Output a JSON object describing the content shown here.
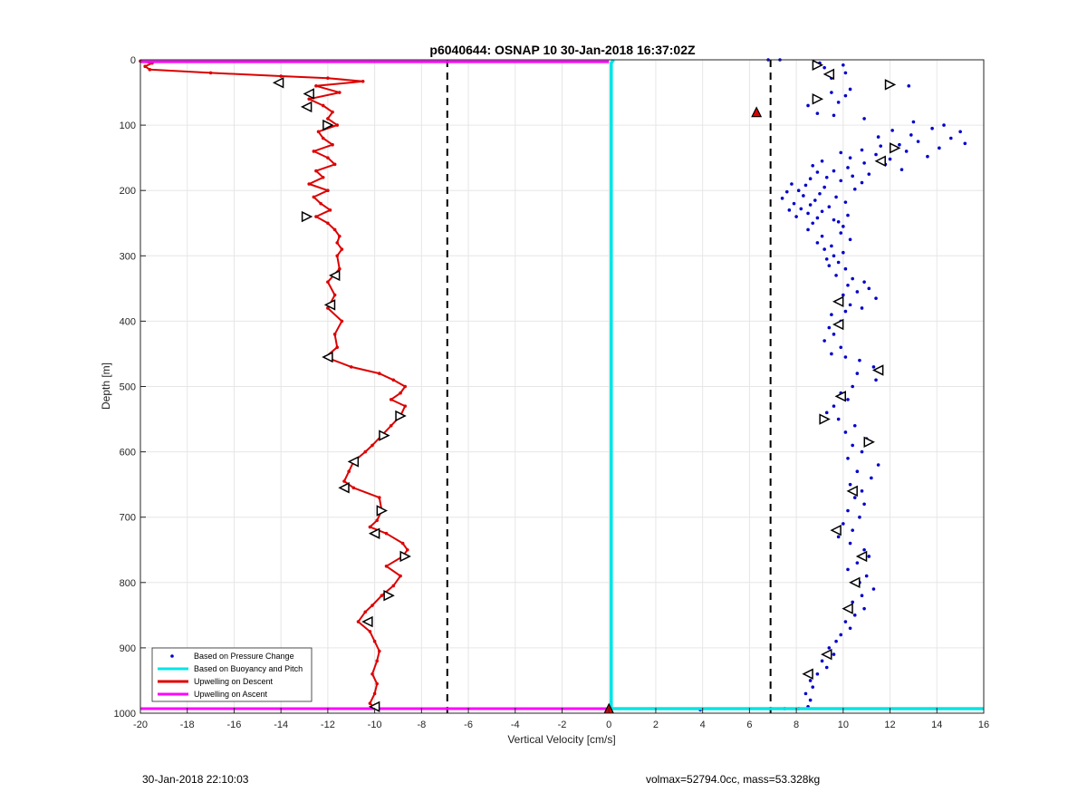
{
  "chart_data": {
    "type": "scatter",
    "title": "p6040644: OSNAP 10 30-Jan-2018 16:37:02Z",
    "xlabel": "Vertical Velocity [cm/s]",
    "ylabel": "Depth [m]",
    "xlim": [
      -20,
      16
    ],
    "ylim": [
      0,
      1000
    ],
    "y_reversed": true,
    "grid": true,
    "x_ticks": [
      "-20",
      "-18",
      "-16",
      "-14",
      "-12",
      "-10",
      "-8",
      "-6",
      "-4",
      "-2",
      "0",
      "2",
      "4",
      "6",
      "8",
      "10",
      "12",
      "14",
      "16"
    ],
    "y_ticks": [
      "0",
      "100",
      "200",
      "300",
      "400",
      "500",
      "600",
      "700",
      "800",
      "900",
      "1000"
    ],
    "x_tick_values": [
      -20,
      -18,
      -16,
      -14,
      -12,
      -10,
      -8,
      -6,
      -4,
      -2,
      0,
      2,
      4,
      6,
      8,
      10,
      12,
      14,
      16
    ],
    "y_tick_values": [
      0,
      100,
      200,
      300,
      400,
      500,
      600,
      700,
      800,
      900,
      1000
    ],
    "legend_position": "bottom-left",
    "legend": [
      {
        "label": "Based on Pressure Change",
        "color": "#0000cc",
        "style": "dot"
      },
      {
        "label": "Based on Buoyancy and Pitch",
        "color": "#00e5e5",
        "style": "line"
      },
      {
        "label": "Upwelling on Descent",
        "color": "#dd0000",
        "style": "line"
      },
      {
        "label": "Upwelling on Ascent",
        "color": "#ff00ff",
        "style": "line"
      }
    ],
    "vlines_dashed": [
      -6.9,
      6.9
    ],
    "series": [
      {
        "name": "Upwelling on Descent",
        "color": "#dd0000",
        "depth": [
          2,
          5,
          10,
          15,
          20,
          25,
          28,
          33,
          40,
          50,
          60,
          70,
          80,
          90,
          100,
          110,
          120,
          130,
          140,
          150,
          160,
          170,
          180,
          190,
          200,
          210,
          220,
          230,
          240,
          250,
          260,
          270,
          280,
          290,
          300,
          320,
          340,
          360,
          380,
          400,
          420,
          440,
          455,
          470,
          480,
          490,
          500,
          510,
          520,
          530,
          545,
          560,
          575,
          590,
          600,
          615,
          630,
          645,
          655,
          670,
          690,
          705,
          715,
          725,
          740,
          750,
          760,
          775,
          790,
          805,
          820,
          835,
          845,
          860,
          875,
          890,
          905,
          920,
          940,
          955,
          970,
          985,
          992
        ],
        "velocity": [
          -20,
          -19.5,
          -19.8,
          -19.6,
          -17,
          -14,
          -12,
          -10.5,
          -12.5,
          -11.5,
          -12.8,
          -12.2,
          -11.8,
          -12,
          -11.6,
          -12.4,
          -12.2,
          -11.8,
          -12.6,
          -12.0,
          -11.7,
          -12.5,
          -12.2,
          -12.8,
          -12.0,
          -12.6,
          -12.3,
          -11.9,
          -12.5,
          -12.0,
          -11.7,
          -11.5,
          -11.6,
          -11.4,
          -11.6,
          -11.5,
          -12.0,
          -11.7,
          -12.0,
          -11.4,
          -11.7,
          -11.6,
          -12.1,
          -11.0,
          -9.8,
          -9.2,
          -8.7,
          -8.9,
          -9.3,
          -8.7,
          -8.9,
          -9.3,
          -9.7,
          -10.1,
          -10.4,
          -10.9,
          -11.1,
          -11.3,
          -10.9,
          -9.8,
          -9.7,
          -9.9,
          -10.2,
          -9.5,
          -8.8,
          -8.6,
          -8.8,
          -9.5,
          -8.9,
          -9.2,
          -9.7,
          -10.1,
          -10.4,
          -10.7,
          -10.2,
          -10.0,
          -9.8,
          -9.9,
          -10.1,
          -9.9,
          -10.0,
          -10.2,
          -10.0
        ]
      },
      {
        "name": "Based on Pressure Change",
        "color": "#0000cc",
        "depth": [
          0,
          0,
          5,
          8,
          12,
          20,
          28,
          35,
          40,
          45,
          50,
          55,
          60,
          65,
          70,
          78,
          82,
          85,
          90,
          95,
          100,
          105,
          108,
          110,
          115,
          118,
          120,
          125,
          128,
          130,
          132,
          135,
          138,
          140,
          142,
          145,
          148,
          150,
          152,
          155,
          158,
          160,
          162,
          165,
          168,
          170,
          172,
          175,
          178,
          180,
          182,
          185,
          188,
          190,
          192,
          195,
          198,
          200,
          202,
          205,
          208,
          210,
          212,
          215,
          218,
          220,
          222,
          225,
          228,
          230,
          232,
          235,
          238,
          240,
          242,
          245,
          248,
          250,
          255,
          260,
          265,
          270,
          275,
          280,
          285,
          290,
          295,
          300,
          305,
          310,
          315,
          320,
          330,
          335,
          340,
          345,
          350,
          355,
          360,
          365,
          370,
          375,
          380,
          385,
          390,
          400,
          410,
          420,
          430,
          440,
          450,
          455,
          460,
          470,
          480,
          490,
          500,
          510,
          520,
          530,
          540,
          550,
          560,
          570,
          580,
          590,
          600,
          610,
          620,
          630,
          640,
          650,
          660,
          670,
          680,
          690,
          700,
          710,
          720,
          730,
          740,
          750,
          760,
          770,
          780,
          790,
          800,
          810,
          820,
          830,
          840,
          850,
          860,
          870,
          880,
          890,
          900,
          910,
          920,
          930,
          940,
          950,
          960,
          970,
          980,
          990,
          993,
          993,
          995
        ],
        "velocity": [
          6.8,
          7.3,
          9.0,
          10.0,
          9.2,
          10.1,
          9.5,
          11.9,
          12.8,
          10.3,
          9.5,
          10.1,
          8.9,
          9.8,
          8.5,
          6.3,
          8.9,
          9.6,
          10.9,
          13.0,
          14.3,
          13.8,
          12.1,
          15.0,
          12.9,
          11.5,
          14.6,
          13.2,
          15.2,
          12.4,
          11.6,
          14.1,
          10.8,
          12.7,
          9.9,
          11.4,
          13.6,
          10.3,
          12.0,
          9.1,
          10.9,
          11.8,
          8.7,
          10.2,
          12.5,
          9.6,
          8.9,
          11.1,
          10.4,
          9.3,
          8.6,
          9.9,
          10.8,
          7.8,
          8.4,
          9.2,
          10.5,
          8.1,
          7.6,
          9.0,
          8.3,
          9.7,
          7.4,
          8.8,
          10.1,
          7.9,
          8.6,
          9.4,
          8.2,
          7.7,
          9.1,
          8.5,
          10.2,
          8.0,
          8.9,
          9.6,
          9.8,
          8.7,
          10.0,
          8.5,
          9.9,
          9.1,
          10.3,
          8.9,
          9.5,
          9.2,
          10.0,
          9.6,
          9.3,
          9.8,
          9.4,
          10.1,
          9.7,
          10.4,
          10.9,
          10.2,
          11.1,
          10.6,
          10.0,
          11.4,
          9.7,
          10.3,
          10.8,
          10.1,
          9.5,
          9.9,
          9.4,
          9.6,
          9.2,
          9.9,
          9.5,
          10.1,
          10.7,
          11.3,
          10.6,
          11.4,
          10.4,
          9.9,
          10.2,
          9.6,
          9.3,
          9.8,
          10.5,
          10.1,
          11.0,
          10.4,
          10.8,
          10.2,
          11.5,
          10.6,
          11.2,
          10.3,
          10.8,
          10.5,
          10.9,
          10.2,
          10.7,
          10.0,
          10.4,
          9.8,
          10.3,
          10.9,
          11.1,
          10.6,
          10.2,
          11.0,
          10.7,
          11.3,
          10.8,
          10.4,
          10.9,
          10.5,
          10.1,
          10.3,
          9.9,
          9.7,
          9.4,
          9.6,
          9.1,
          9.3,
          8.9,
          8.6,
          8.7,
          8.4,
          8.6,
          8.5,
          8.1,
          7.5,
          3.9,
          1.2,
          -5.0
        ]
      },
      {
        "name": "Based on Buoyancy and Pitch",
        "color": "#00e5e5",
        "depth": [
          0,
          5,
          10,
          200,
          400,
          600,
          800,
          985,
          993,
          993
        ],
        "velocity": [
          0.2,
          0.1,
          0.1,
          0.1,
          0.1,
          0.1,
          0.1,
          0.1,
          0.1,
          16
        ]
      },
      {
        "name": "Upwelling on Ascent",
        "color": "#ff00ff",
        "depth": [
          3,
          3,
          993,
          993
        ],
        "velocity": [
          -20,
          0,
          -20,
          0
        ]
      }
    ],
    "markers_descent": {
      "depth": [
        35,
        52,
        72,
        100,
        240,
        330,
        375,
        455,
        545,
        575,
        615,
        655,
        690,
        725,
        760,
        820,
        860,
        990
      ],
      "velocity": [
        -14.1,
        -12.8,
        -12.9,
        -12.0,
        -12.9,
        -11.7,
        -11.9,
        -12.0,
        -8.9,
        -9.6,
        -10.9,
        -11.3,
        -9.7,
        -10.0,
        -8.7,
        -9.4,
        -10.3,
        -10.0
      ],
      "direction": [
        "left",
        "left",
        "left",
        "right",
        "right",
        "left",
        "left",
        "left",
        "right",
        "right",
        "left",
        "left",
        "right",
        "left",
        "right",
        "right",
        "left",
        "left"
      ]
    },
    "markers_ascent": {
      "depth": [
        8,
        22,
        38,
        60,
        135,
        155,
        370,
        405,
        475,
        515,
        550,
        585,
        660,
        720,
        760,
        800,
        840,
        910,
        940
      ],
      "velocity": [
        8.9,
        9.4,
        12.0,
        8.9,
        12.2,
        11.6,
        9.8,
        9.8,
        11.5,
        9.9,
        9.2,
        11.1,
        10.4,
        9.7,
        10.8,
        10.5,
        10.2,
        9.3,
        8.5
      ],
      "direction": [
        "right",
        "left",
        "right",
        "right",
        "right",
        "left",
        "left",
        "left",
        "left",
        "left",
        "right",
        "right",
        "left",
        "left",
        "left",
        "left",
        "left",
        "left",
        "left"
      ]
    },
    "filled_markers": {
      "depth": [
        80,
        993
      ],
      "velocity": [
        6.3,
        0
      ],
      "color": "#dd0000"
    },
    "footer_timestamp": "30-Jan-2018 22:10:03",
    "footer_info": "volmax=52794.0cc, mass=53.328kg"
  }
}
